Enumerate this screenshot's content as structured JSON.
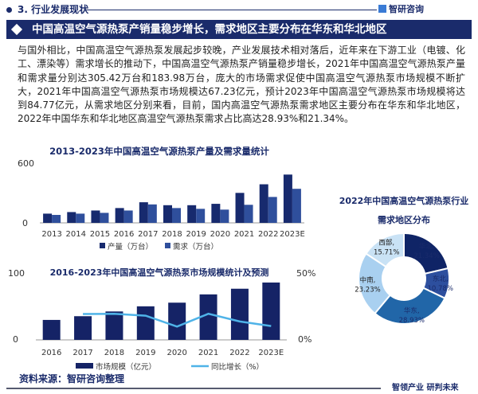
{
  "header": {
    "section": "3. 行业发展现状",
    "brand": "智研咨询"
  },
  "banner": {
    "title": "中国高温空气源热泵产销量稳步增长，需求地区主要分布在华东和华北地区"
  },
  "paragraph": "与国外相比，中国高温空气源热泵发展起步较晚，产业发展技术相对落后，近年来在下游工业（电镀、化工、漂染等）需求增长的推动下，中国高温空气源热泵产销量稳步增长，2021年中国高温空气源热泵产量和需求量分别达305.42万台和183.98万台，庞大的市场需求促使中国高温空气源热泵市场规模不断扩大，2021年中国高温空气源热泵市场规模达67.23亿元，预计2023年中国高温空气源热泵市场规模将达到84.77亿元，从需求地区分别来看，目前，国内高温空气源热泵需求地区主要分布在华东和华北地区，2022年中国华东和华北地区高温空气源热泵需求占比高达28.93%和21.34%。",
  "footer": {
    "source": "资料来源：智研咨询整理",
    "slogan": "智领产业 研判未来"
  },
  "chart_data": [
    {
      "type": "bar",
      "title": "2013-2023年中国高温空气源热泵产量及需求量统计",
      "categories": [
        "2013",
        "2014",
        "2015",
        "2016",
        "2017",
        "2018",
        "2019",
        "2020",
        "2021",
        "2022",
        "2023E"
      ],
      "ylim": [
        0,
        600
      ],
      "yticks": [
        "0",
        "600"
      ],
      "grid": false,
      "legend": "bottom",
      "series": [
        {
          "name": "产量（万台）",
          "color": "#172a6e",
          "values": [
            94,
            110,
            126,
            151,
            210,
            180,
            180,
            194,
            305.42,
            393,
            492
          ]
        },
        {
          "name": "需求（万台）",
          "color": "#2f4f9c",
          "values": [
            81,
            94,
            102,
            126,
            188,
            151,
            143,
            135,
            183.98,
            264,
            347
          ]
        }
      ]
    },
    {
      "type": "bar+line",
      "title": "2016-2023年中国高温空气源热泵市场规模统计及预测",
      "categories": [
        "2016",
        "2017",
        "2018",
        "2019",
        "2020",
        "2021",
        "2022",
        "2023E"
      ],
      "ylim": [
        0,
        100
      ],
      "yticks": [
        "0",
        "100"
      ],
      "y2lim": [
        0,
        50
      ],
      "y2ticks": [
        "0%",
        "50%"
      ],
      "grid": false,
      "legend": "bottom",
      "series": [
        {
          "name": "市场规模（亿元）",
          "type": "bar",
          "color": "#152366",
          "values": [
            29.5,
            35,
            42,
            49.6,
            55,
            67.23,
            75.6,
            84.77
          ]
        },
        {
          "name": "同比增长（%）",
          "type": "line",
          "axis": "right",
          "color": "#4fb3e8",
          "values": [
            null,
            19.1,
            19.3,
            17.9,
            9.8,
            19.3,
            13.6,
            10.2
          ]
        }
      ]
    },
    {
      "type": "pie",
      "title": "2022年中国高温空气源热泵行业",
      "subtitle": "需求地区分布",
      "donut": true,
      "slices": [
        {
          "label": "华北",
          "value": 21.34,
          "text": "21.34%",
          "color": "#0f2466"
        },
        {
          "label": "东北",
          "value": 10.78,
          "text": "10.78%",
          "color": "#2d4f9e"
        },
        {
          "label": "华东",
          "value": 28.93,
          "text": "28.93%",
          "color": "#2166a8"
        },
        {
          "label": "中南",
          "value": 23.23,
          "text": "23.23%",
          "color": "#a9d0f0"
        },
        {
          "label": "西部",
          "value": 15.71,
          "text": "15.71%",
          "color": "#c9e2f5"
        }
      ]
    }
  ]
}
